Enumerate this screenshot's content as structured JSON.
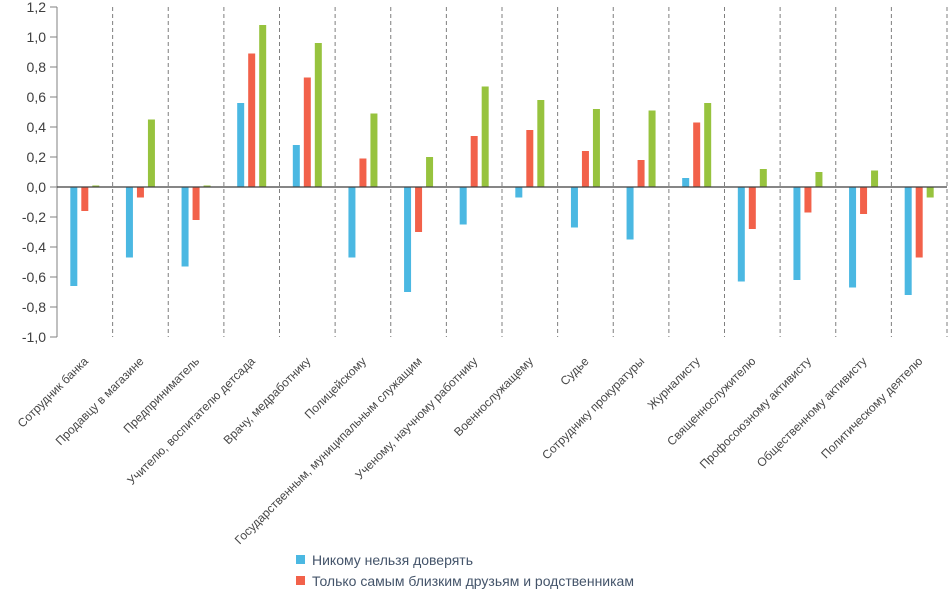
{
  "chart_data": {
    "type": "bar",
    "title": "",
    "categories": [
      "Сотрудник банка",
      "Продавцу в магазине",
      "Предприниматель",
      "Учителю, воспитателю детсада",
      "Врачу, медработнику",
      "Полицейскому",
      "Государственным, муниципальным служащим",
      "Ученому, научному работнику",
      "Военнослужащему",
      "Судье",
      "Сотруднику прокуратуры",
      "Журналисту",
      "Священнослужителю",
      "Профосоюзному активисту",
      "Общественному активисту",
      "Политическому деятелю"
    ],
    "series": [
      {
        "name": "Никому нельзя доверять",
        "color": "#4bb8e2",
        "in_legend": true,
        "values": [
          -0.66,
          -0.47,
          -0.53,
          0.56,
          0.28,
          -0.47,
          -0.7,
          -0.25,
          -0.07,
          -0.27,
          -0.35,
          0.06,
          -0.63,
          -0.62,
          -0.67,
          -0.72
        ]
      },
      {
        "name": "Только самым близким друзьям и родственникам",
        "color": "#f2614a",
        "in_legend": true,
        "values": [
          -0.16,
          -0.07,
          -0.22,
          0.89,
          0.73,
          0.19,
          -0.3,
          0.34,
          0.38,
          0.24,
          0.18,
          0.43,
          -0.28,
          -0.17,
          -0.18,
          -0.47
        ]
      },
      {
        "name": "",
        "color": "#97c33e",
        "in_legend": false,
        "values": [
          0.01,
          0.45,
          0.01,
          1.08,
          0.96,
          0.49,
          0.2,
          0.67,
          0.58,
          0.52,
          0.51,
          0.56,
          0.12,
          0.1,
          0.11,
          -0.07
        ]
      }
    ],
    "xlabel": "",
    "ylabel": "",
    "ylim": [
      -1.0,
      1.2
    ],
    "ytick_step": 0.2,
    "ytick_labels": [
      "1,2",
      "1,0",
      "0,8",
      "0,6",
      "0,4",
      "0,2",
      "0,0",
      "-0,2",
      "-0,4",
      "-0,6",
      "-0,8",
      "-1,0"
    ],
    "decimal_separator": ",",
    "grid": "vertical-dashed-separators-between-categories",
    "legend_position": "bottom",
    "axis_color": "#3f3f3f",
    "gridline_color": "#7f7f7f",
    "legend_text_color": "#44546a"
  }
}
